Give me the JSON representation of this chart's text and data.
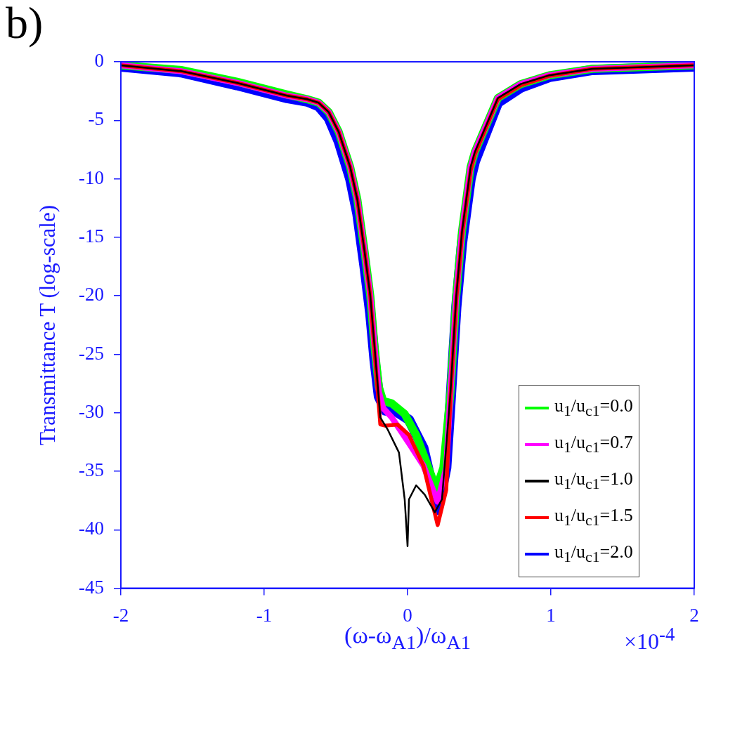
{
  "chart_data": {
    "type": "line",
    "title": "b)",
    "xlabel": "(ω-ω$_{A1}$)/ω$_{A1}$",
    "ylabel": "Transmittance T (log-scale)",
    "annotations": [
      "×10$^{-4}$"
    ],
    "xlim": [
      -2,
      2
    ],
    "xticks": [
      -2,
      -1,
      0,
      1,
      2
    ],
    "ylim": [
      -45,
      0
    ],
    "yticks": [
      -45,
      -40,
      -35,
      -30,
      -25,
      -20,
      -15,
      -10,
      -5,
      0
    ],
    "grid": false,
    "legend": "bottom right",
    "line_style": "solid",
    "marker": "none",
    "series": [
      {
        "name": "u$_{1}$/u$_{c1}$=0.0",
        "color": "#00ff00",
        "x": [
          -2,
          -1.58,
          -1.19,
          -0.84,
          -0.7,
          -0.62,
          -0.55,
          -0.48,
          -0.4,
          -0.35,
          -0.3,
          -0.26,
          -0.23,
          -0.2,
          -0.17,
          -0.11,
          -0.02,
          0.06,
          0.14,
          0.2,
          0.25,
          0.3,
          0.34,
          0.38,
          0.44,
          0.47,
          0.63,
          0.79,
          0.99,
          1.29,
          2
        ],
        "values": [
          -0.3,
          -0.7,
          -1.7,
          -2.8,
          -3.2,
          -3.5,
          -4.3,
          -6,
          -9,
          -11.8,
          -16.2,
          -20,
          -24.4,
          -27.8,
          -29,
          -29.2,
          -30.1,
          -31.9,
          -34.5,
          -36.5,
          -34.7,
          -28.2,
          -20,
          -14.5,
          -9,
          -7.7,
          -3.1,
          -1.9,
          -1.15,
          -0.6,
          -0.3
        ]
      },
      {
        "name": "u$_{1}$/u$_{c1}$=0.7",
        "color": "#ff00ff",
        "x": [
          -2,
          -1.58,
          -1.19,
          -0.84,
          -0.7,
          -0.62,
          -0.55,
          -0.48,
          -0.4,
          -0.35,
          -0.3,
          -0.26,
          -0.23,
          -0.2,
          -0.17,
          -0.11,
          0.01,
          0.11,
          0.21,
          0.27,
          0.3,
          0.34,
          0.38,
          0.44,
          0.47,
          0.63,
          0.79,
          0.99,
          1.29,
          2
        ],
        "values": [
          -0.3,
          -0.8,
          -1.8,
          -2.9,
          -3.2,
          -3.5,
          -4.3,
          -6,
          -9,
          -11.8,
          -16.2,
          -20,
          -24.4,
          -28.2,
          -29.6,
          -30.4,
          -32.6,
          -34.5,
          -37.6,
          -34.7,
          -28.2,
          -20,
          -14.5,
          -9,
          -7.7,
          -3.1,
          -1.9,
          -1.15,
          -0.6,
          -0.3
        ]
      },
      {
        "name": "u$_{1}$/u$_{c1}$=1.0",
        "color": "#000000",
        "x": [
          -2,
          -1.58,
          -1.19,
          -0.84,
          -0.7,
          -0.62,
          -0.55,
          -0.48,
          -0.4,
          -0.35,
          -0.3,
          -0.26,
          -0.23,
          -0.19,
          -0.14,
          -0.06,
          -0.02,
          0,
          0.01,
          0.06,
          0.12,
          0.19,
          0.24,
          0.3,
          0.34,
          0.38,
          0.44,
          0.47,
          0.63,
          0.79,
          0.99,
          1.29,
          2
        ],
        "values": [
          -0.3,
          -0.8,
          -1.8,
          -2.9,
          -3.2,
          -3.5,
          -4.3,
          -6,
          -9,
          -11.8,
          -16.2,
          -20,
          -24.4,
          -30.4,
          -31.4,
          -33.4,
          -37.4,
          -41.4,
          -37.4,
          -36.2,
          -37,
          -38.5,
          -37.4,
          -28.2,
          -20,
          -14.5,
          -9,
          -7.7,
          -3.1,
          -1.9,
          -1.15,
          -0.6,
          -0.3
        ]
      },
      {
        "name": "u$_{1}$/u$_{c1}$=1.5",
        "color": "#ff0000",
        "x": [
          -2,
          -1.58,
          -1.19,
          -0.84,
          -0.7,
          -0.62,
          -0.55,
          -0.48,
          -0.4,
          -0.35,
          -0.3,
          -0.26,
          -0.23,
          -0.19,
          -0.155,
          -0.07,
          0.01,
          0.11,
          0.21,
          0.27,
          0.3,
          0.34,
          0.38,
          0.44,
          0.47,
          0.63,
          0.79,
          0.99,
          1.29,
          2
        ],
        "values": [
          -0.3,
          -0.8,
          -1.8,
          -2.9,
          -3.2,
          -3.5,
          -4.3,
          -6,
          -9,
          -11.8,
          -16.2,
          -20,
          -24.8,
          -31,
          -31.1,
          -31,
          -31.9,
          -34.5,
          -39.6,
          -36.6,
          -28.5,
          -20.3,
          -14.8,
          -9.3,
          -7.9,
          -3.2,
          -2,
          -1.2,
          -0.6,
          -0.3
        ]
      },
      {
        "name": "u$_{1}$/u$_{c1}$=2.0",
        "color": "#0000ff",
        "x": [
          -2,
          -1.58,
          -1.19,
          -0.84,
          -0.7,
          -0.62,
          -0.55,
          -0.48,
          -0.4,
          -0.35,
          -0.3,
          -0.26,
          -0.23,
          -0.2,
          -0.155,
          -0.09,
          0.01,
          0.11,
          0.21,
          0.27,
          0.3,
          0.34,
          0.38,
          0.44,
          0.47,
          0.63,
          0.79,
          0.99,
          1.29,
          2
        ],
        "values": [
          -0.4,
          -0.9,
          -2,
          -3.1,
          -3.4,
          -3.8,
          -4.8,
          -6.8,
          -10,
          -13,
          -17.5,
          -21.5,
          -25.5,
          -28.6,
          -29.8,
          -29.8,
          -30.6,
          -33,
          -38.3,
          -34.7,
          -29,
          -21,
          -15.5,
          -10,
          -8.5,
          -3.5,
          -2.2,
          -1.3,
          -0.7,
          -0.4
        ]
      }
    ]
  }
}
